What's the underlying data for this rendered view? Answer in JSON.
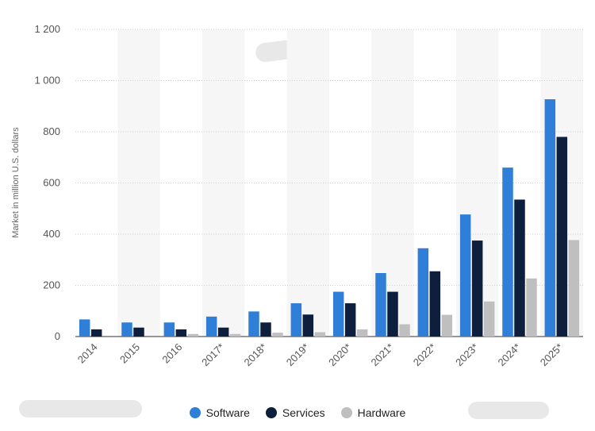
{
  "chart_data": {
    "type": "bar",
    "categories": [
      "2014",
      "2015",
      "2016",
      "2017*",
      "2018*",
      "2019*",
      "2020*",
      "2021*",
      "2022*",
      "2023*",
      "2024*",
      "2025*"
    ],
    "series": [
      {
        "name": "Software",
        "color": "#2f7ed8",
        "values": [
          67,
          55,
          55,
          78,
          98,
          130,
          175,
          248,
          345,
          477,
          660,
          927
        ]
      },
      {
        "name": "Services",
        "color": "#0d1f3c",
        "values": [
          28,
          35,
          28,
          35,
          55,
          86,
          130,
          175,
          255,
          375,
          535,
          780
        ]
      },
      {
        "name": "Hardware",
        "color": "#bfbfbf",
        "values": [
          0,
          0,
          10,
          10,
          15,
          17,
          28,
          48,
          85,
          137,
          227,
          377
        ]
      }
    ],
    "ylabel": "Market in million U.S. dollars",
    "ylim": [
      0,
      1200
    ],
    "yticks": [
      "0",
      "200",
      "400",
      "600",
      "800",
      "1 000",
      "1 200"
    ],
    "grid": true,
    "legend_position": "bottom"
  }
}
